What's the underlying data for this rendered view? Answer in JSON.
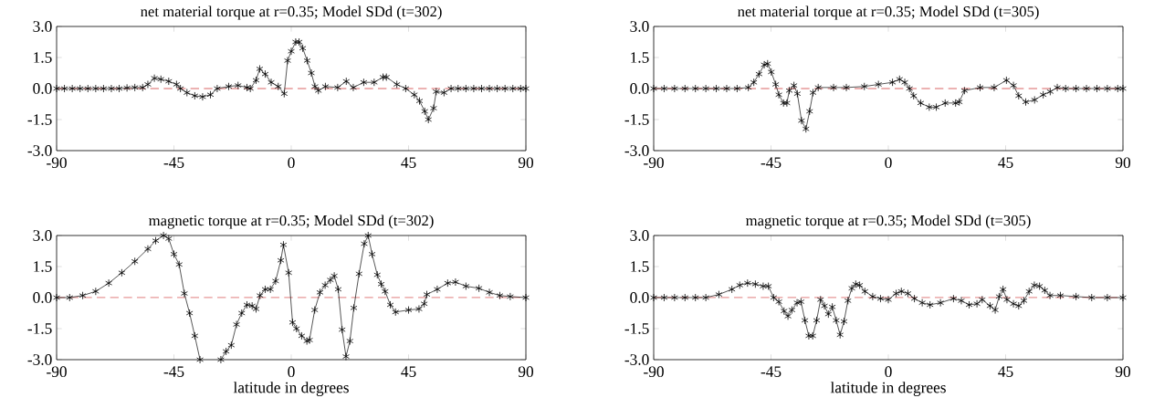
{
  "chart_data": [
    {
      "type": "line",
      "title": "net material torque at r=0.35; Model SDd (t=302)",
      "color": "#000000",
      "marker": "cross",
      "line_style": "solid",
      "x": [
        -90,
        -87,
        -84,
        -81,
        -78,
        -75,
        -72,
        -69,
        -66,
        -63,
        -60,
        -57,
        -55,
        -52.5,
        -50,
        -47,
        -44,
        -42.5,
        -40,
        -37,
        -34,
        -31,
        -28.4,
        -24,
        -20.4,
        -17,
        -15.7,
        -13.5,
        -12.1,
        -10,
        -7.7,
        -5,
        -2.7,
        -1.4,
        0,
        1.7,
        3,
        4.4,
        6.1,
        7.7,
        9.1,
        10.4,
        13.1,
        17.8,
        21.1,
        23.8,
        27.8,
        31.8,
        35.2,
        36.5,
        40.5,
        43.9,
        47.2,
        49.2,
        51.2,
        52.6,
        54.6,
        55.6,
        58.6,
        61.3,
        64,
        67,
        70,
        73,
        76,
        79,
        82,
        85,
        88,
        90
      ],
      "values": [
        0,
        0,
        0,
        0,
        0,
        0,
        0,
        0,
        0,
        0.03,
        0.05,
        0.05,
        0.2,
        0.5,
        0.45,
        0.35,
        0.2,
        0,
        -0.2,
        -0.35,
        -0.4,
        -0.3,
        0,
        0.1,
        0.15,
        0.05,
        0,
        0.4,
        0.95,
        0.7,
        0.3,
        0.1,
        -0.25,
        1.35,
        1.8,
        2.25,
        2.25,
        1.95,
        1.35,
        0.75,
        0.1,
        -0.1,
        0.1,
        0.05,
        0.35,
        0.05,
        0.3,
        0.3,
        0.55,
        0.55,
        0.2,
        0,
        -0.3,
        -0.6,
        -1.1,
        -1.5,
        -0.95,
        -0.15,
        -0.2,
        0,
        0,
        0,
        0,
        0,
        0,
        0,
        0,
        0,
        0,
        0
      ],
      "xlim": [
        -90,
        90
      ],
      "xticks": [
        -90,
        -45,
        0,
        45,
        90
      ],
      "ylim": [
        -3,
        3
      ],
      "yticks": [
        {
          "value": -3,
          "label": "-3.0"
        },
        {
          "value": -1.5,
          "label": "-1.5"
        },
        {
          "value": 0,
          "label": "0.0"
        },
        {
          "value": 1.5,
          "label": "1.5"
        },
        {
          "value": 3,
          "label": "3.0"
        }
      ],
      "ref_lines": [
        {
          "axis": "y",
          "value": 0,
          "color": "#cc3333",
          "line_style": "dashed"
        }
      ]
    },
    {
      "type": "line",
      "title": "net material torque at r=0.35; Model SDd (t=305)",
      "color": "#000000",
      "marker": "cross",
      "line_style": "solid",
      "x": [
        -90,
        -86,
        -82,
        -78,
        -74,
        -70,
        -66,
        -62,
        -58,
        -53.7,
        -51.6,
        -49.6,
        -47.6,
        -46.3,
        -44.9,
        -43.2,
        -42,
        -40.2,
        -38.9,
        -38,
        -36.2,
        -34.9,
        -33.3,
        -31.6,
        -30.2,
        -28.9,
        -26.9,
        -21,
        -16.1,
        -9.2,
        -3.8,
        1.6,
        4.3,
        6.3,
        8.1,
        9.7,
        12.4,
        15.7,
        18.4,
        21.8,
        25.8,
        27.2,
        29.2,
        35.2,
        40.6,
        45.3,
        48,
        50,
        52.7,
        56.1,
        59.4,
        62.1,
        64.8,
        68,
        72,
        76,
        80,
        84,
        88,
        90
      ],
      "values": [
        0,
        0,
        0,
        0,
        0,
        0,
        0,
        0,
        0,
        0.05,
        0.3,
        0.7,
        1.15,
        1.2,
        0.8,
        0.2,
        -0.3,
        -0.7,
        -0.7,
        -0.1,
        0.15,
        -0.25,
        -1.55,
        -1.95,
        -1.1,
        -0.2,
        0.05,
        0.05,
        0.05,
        0.1,
        0.2,
        0.3,
        0.45,
        0.3,
        0,
        -0.35,
        -0.7,
        -0.9,
        -0.9,
        -0.7,
        -0.7,
        -0.65,
        -0.1,
        0.05,
        0.05,
        0.4,
        0.15,
        -0.35,
        -0.65,
        -0.55,
        -0.3,
        -0.15,
        0.05,
        0,
        0,
        0,
        0,
        0,
        0,
        0
      ],
      "xlim": [
        -90,
        90
      ],
      "xticks": [
        -90,
        -45,
        0,
        45,
        90
      ],
      "ylim": [
        -3,
        3
      ],
      "yticks": [
        {
          "value": -3,
          "label": "-3.0"
        },
        {
          "value": -1.5,
          "label": "-1.5"
        },
        {
          "value": 0,
          "label": "0.0"
        },
        {
          "value": 1.5,
          "label": "1.5"
        },
        {
          "value": 3,
          "label": "3.0"
        }
      ],
      "ref_lines": [
        {
          "axis": "y",
          "value": 0,
          "color": "#cc3333",
          "line_style": "dashed"
        }
      ]
    },
    {
      "type": "line",
      "title": "magnetic torque at r=0.35; Model SDd (t=302)",
      "xlabel": "latitude in degrees",
      "color": "#000000",
      "marker": "cross",
      "line_style": "solid",
      "x": [
        -90,
        -85,
        -80,
        -75,
        -70,
        -65,
        -60,
        -55,
        -52,
        -49,
        -47,
        -45,
        -43,
        -41,
        -39,
        -37,
        -35,
        -31,
        -27,
        -25,
        -23,
        -21,
        -19,
        -17,
        -15,
        -13.5,
        -12,
        -10,
        -8,
        -6,
        -4,
        -3,
        -1,
        0.5,
        2,
        4,
        6,
        7,
        9,
        11,
        13,
        15,
        16.5,
        18,
        19.5,
        21,
        22.5,
        24,
        26,
        28,
        29.5,
        31,
        33,
        34.5,
        36,
        38,
        40,
        45,
        49,
        51,
        52,
        56,
        60,
        63,
        67,
        72,
        76,
        80,
        84,
        90
      ],
      "values": [
        0,
        0,
        0.1,
        0.3,
        0.7,
        1.2,
        1.75,
        2.35,
        2.75,
        3.0,
        2.85,
        2.1,
        1.6,
        0.2,
        -0.75,
        -1.85,
        -3.0,
        null,
        -3.0,
        -2.6,
        -2.3,
        -1.3,
        -0.75,
        -0.35,
        -0.4,
        -0.55,
        0.1,
        0.4,
        0.4,
        0.8,
        1.8,
        2.55,
        1.2,
        -1.2,
        -1.5,
        -1.85,
        -2.1,
        -2.05,
        -0.6,
        0.25,
        0.6,
        0.85,
        1.05,
        0.4,
        -1.55,
        -2.85,
        -2.1,
        -0.5,
        1.15,
        2.6,
        3.0,
        2.1,
        1.1,
        0.65,
        0.3,
        -0.35,
        -0.7,
        -0.6,
        -0.55,
        -0.3,
        0.15,
        0.4,
        0.7,
        0.75,
        0.55,
        0.45,
        0.25,
        0.1,
        0.05,
        0
      ],
      "xlim": [
        -90,
        90
      ],
      "xticks": [
        -90,
        -45,
        0,
        45,
        90
      ],
      "ylim": [
        -3,
        3
      ],
      "yticks": [
        {
          "value": -3,
          "label": "-3.0"
        },
        {
          "value": -1.5,
          "label": "-1.5"
        },
        {
          "value": 0,
          "label": "0.0"
        },
        {
          "value": 1.5,
          "label": "1.5"
        },
        {
          "value": 3,
          "label": "3.0"
        }
      ],
      "ref_lines": [
        {
          "axis": "y",
          "value": 0,
          "color": "#cc3333",
          "line_style": "dashed"
        }
      ]
    },
    {
      "type": "line",
      "title": "magnetic torque at r=0.35; Model SDd (t=305)",
      "xlabel": "latitude in degrees",
      "color": "#000000",
      "marker": "cross",
      "line_style": "solid",
      "x": [
        -90,
        -86,
        -82,
        -78,
        -74,
        -70,
        -65,
        -60,
        -57,
        -54,
        -51,
        -48,
        -46,
        -44,
        -42,
        -40,
        -38.5,
        -37,
        -35,
        -33.5,
        -32,
        -30.5,
        -29,
        -27.5,
        -26,
        -24.5,
        -23,
        -21.5,
        -20,
        -18.5,
        -17,
        -15.5,
        -14,
        -12.5,
        -11,
        -9,
        -6,
        -3,
        0,
        3,
        5,
        7.5,
        10,
        13,
        16,
        20,
        25,
        28,
        31,
        34,
        36,
        39,
        41,
        42.5,
        44,
        45.5,
        48,
        50,
        52,
        54,
        56,
        58,
        60,
        62,
        66,
        72,
        78,
        84,
        90
      ],
      "values": [
        0,
        0,
        0,
        0,
        0,
        0,
        0.15,
        0.4,
        0.6,
        0.7,
        0.65,
        0.55,
        0.55,
        0,
        -0.2,
        -0.65,
        -0.9,
        -0.6,
        -0.25,
        -0.2,
        -1.1,
        -1.85,
        -1.85,
        -1.1,
        -0.1,
        -0.4,
        -0.8,
        -0.45,
        -1.1,
        -1.8,
        -1.15,
        -0.15,
        0.45,
        0.65,
        0.6,
        0.3,
        0.05,
        -0.05,
        -0.1,
        0.2,
        0.3,
        0.2,
        -0.05,
        -0.25,
        -0.35,
        -0.25,
        -0.05,
        -0.15,
        -0.35,
        -0.3,
        -0.1,
        -0.4,
        -0.6,
        0.05,
        0.4,
        -0.1,
        -0.3,
        -0.4,
        -0.15,
        0.3,
        0.6,
        0.55,
        0.35,
        0.1,
        0.1,
        0.05,
        0,
        0,
        0
      ],
      "xlim": [
        -90,
        90
      ],
      "xticks": [
        -90,
        -45,
        0,
        45,
        90
      ],
      "ylim": [
        -3,
        3
      ],
      "yticks": [
        {
          "value": -3,
          "label": "-3.0"
        },
        {
          "value": -1.5,
          "label": "-1.5"
        },
        {
          "value": 0,
          "label": "0.0"
        },
        {
          "value": 1.5,
          "label": "1.5"
        },
        {
          "value": 3,
          "label": "3.0"
        }
      ],
      "ref_lines": [
        {
          "axis": "y",
          "value": 0,
          "color": "#cc3333",
          "line_style": "dashed"
        }
      ]
    }
  ]
}
